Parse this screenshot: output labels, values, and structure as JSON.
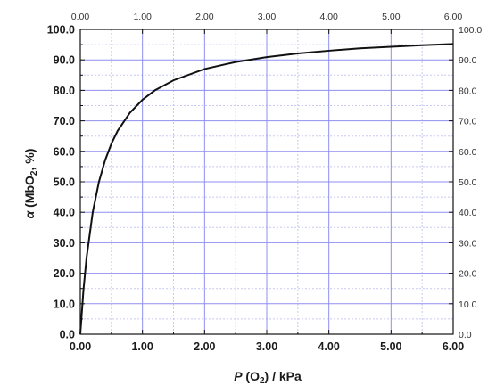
{
  "chart_data": {
    "type": "line",
    "xlabel": {
      "var": "P",
      "open": " (O",
      "sub": "2",
      "close": ") / kPa"
    },
    "ylabel": {
      "var": "α",
      "open": " (MbO",
      "sub": "2",
      "close": ", %)"
    },
    "xlim": [
      0,
      6
    ],
    "ylim": [
      0,
      100
    ],
    "x_ticks": [
      "0.00",
      "1.00",
      "2.00",
      "3.00",
      "4.00",
      "5.00",
      "6.00"
    ],
    "y_ticks": [
      "0.0",
      "10.0",
      "20.0",
      "30.0",
      "40.0",
      "50.0",
      "60.0",
      "70.0",
      "80.0",
      "90.0",
      "100.0"
    ],
    "grid": true,
    "colors": {
      "grid": "#8f8ff0",
      "minor_grid": "#c8c8f4",
      "line": "#111111",
      "axis": "#111111"
    },
    "series": [
      {
        "x": [
          0,
          0.05,
          0.1,
          0.2,
          0.3,
          0.4,
          0.5,
          0.6,
          0.8,
          1.0,
          1.2,
          1.5,
          2.0,
          2.5,
          3.0,
          3.5,
          4.0,
          4.5,
          5.0,
          5.5,
          6.0
        ],
        "y": [
          0,
          14.3,
          25.0,
          40.0,
          50.0,
          57.1,
          62.5,
          66.7,
          72.7,
          76.9,
          80.0,
          83.3,
          87.0,
          89.3,
          90.9,
          92.1,
          93.0,
          93.8,
          94.3,
          94.8,
          95.2
        ]
      }
    ]
  }
}
